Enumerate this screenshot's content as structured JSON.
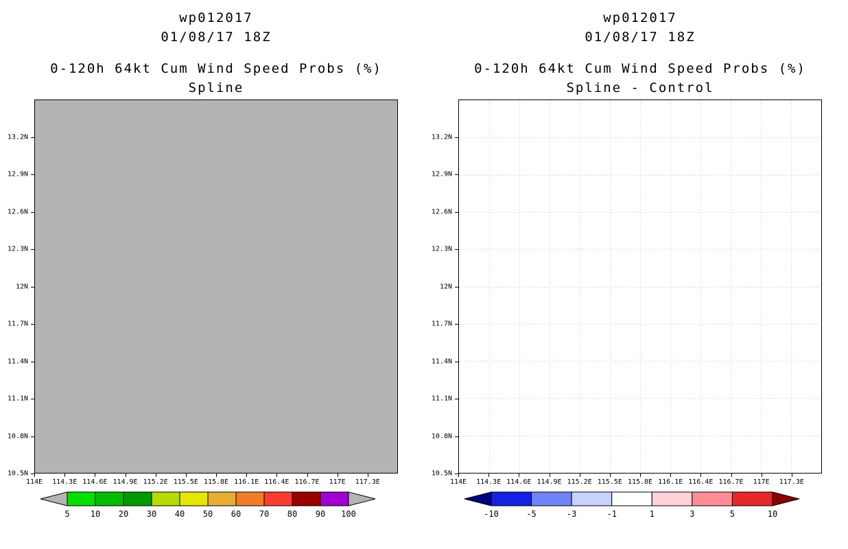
{
  "page": {
    "background": "#ffffff"
  },
  "panels": [
    {
      "storm_id": "wp012017",
      "datetime": "01/08/17 18Z",
      "title": "0-120h 64kt Cum Wind Speed Probs (%)",
      "subtitle": "Spline",
      "map": {
        "fill": "#b4b4b4",
        "grid_visible": false,
        "grid_color": "#c4c4cc"
      },
      "y_ticks": [
        "13.2N",
        "12.9N",
        "12.6N",
        "12.3N",
        "12N",
        "11.7N",
        "11.4N",
        "11.1N",
        "10.8N",
        "10.5N"
      ],
      "x_ticks": [
        "114E",
        "114.3E",
        "114.6E",
        "114.9E",
        "115.2E",
        "115.5E",
        "115.8E",
        "116.1E",
        "116.4E",
        "116.7E",
        "117E",
        "117.3E"
      ],
      "colorbar": {
        "left_arrow": "#b4b4b4",
        "right_arrow": "#b4b4b4",
        "segments": [
          "#00e100",
          "#00bd00",
          "#009900",
          "#b4dc00",
          "#e6e600",
          "#e6af32",
          "#f07d28",
          "#fa3c32",
          "#9b0000",
          "#a000d2"
        ],
        "labels": [
          "5",
          "10",
          "20",
          "30",
          "40",
          "50",
          "60",
          "70",
          "80",
          "90",
          "100"
        ]
      }
    },
    {
      "storm_id": "wp012017",
      "datetime": "01/08/17 18Z",
      "title": "0-120h 64kt Cum Wind Speed Probs (%)",
      "subtitle": "Spline - Control",
      "map": {
        "fill": "#ffffff",
        "grid_visible": true,
        "grid_color": "#c4c4cc"
      },
      "y_ticks": [
        "13.2N",
        "12.9N",
        "12.6N",
        "12.3N",
        "12N",
        "11.7N",
        "11.4N",
        "11.1N",
        "10.8N",
        "10.5N"
      ],
      "x_ticks": [
        "114E",
        "114.3E",
        "114.6E",
        "114.9E",
        "115.2E",
        "115.5E",
        "115.8E",
        "116.1E",
        "116.4E",
        "116.7E",
        "117E",
        "117.3E"
      ],
      "colorbar": {
        "left_arrow": "#000082",
        "right_arrow": "#8b0000",
        "segments": [
          "#1420e6",
          "#6e82fa",
          "#c8d2ff",
          "#ffffff",
          "#ffd2d7",
          "#ff8c96",
          "#e62828"
        ],
        "labels": [
          "-10",
          "-5",
          "-3",
          "-1",
          "1",
          "3",
          "5",
          "10"
        ]
      }
    }
  ],
  "chart_data": [
    {
      "type": "heatmap",
      "storm_id": "wp012017",
      "init_time": "01/08/17 18Z",
      "title": "0-120h 64kt Cum Wind Speed Probs (%)",
      "subtitle": "Spline",
      "xlabel": "",
      "ylabel": "",
      "x_tick_labels": [
        "114E",
        "114.3E",
        "114.6E",
        "114.9E",
        "115.2E",
        "115.5E",
        "115.8E",
        "116.1E",
        "116.4E",
        "116.7E",
        "117E",
        "117.3E"
      ],
      "y_tick_labels": [
        "13.2N",
        "12.9N",
        "12.6N",
        "12.3N",
        "12N",
        "11.7N",
        "11.4N",
        "11.1N",
        "10.8N",
        "10.5N"
      ],
      "xlim_deg_east": [
        114.0,
        117.6
      ],
      "ylim_deg_north": [
        10.5,
        13.5
      ],
      "colorbar_levels_percent": [
        5,
        10,
        20,
        30,
        40,
        50,
        60,
        70,
        80,
        90,
        100
      ],
      "colorbar_colors": [
        "#00e100",
        "#00bd00",
        "#009900",
        "#b4dc00",
        "#e6e600",
        "#e6af32",
        "#f07d28",
        "#fa3c32",
        "#9b0000",
        "#a000d2"
      ],
      "values": "no contoured probability field visible; entire map area is a uniform gray fill (#b4b4b4)",
      "grid": false,
      "legend_position": "bottom"
    },
    {
      "type": "heatmap",
      "storm_id": "wp012017",
      "init_time": "01/08/17 18Z",
      "title": "0-120h 64kt Cum Wind Speed Probs (%)",
      "subtitle": "Spline - Control",
      "xlabel": "",
      "ylabel": "",
      "x_tick_labels": [
        "114E",
        "114.3E",
        "114.6E",
        "114.9E",
        "115.2E",
        "115.5E",
        "115.8E",
        "116.1E",
        "116.4E",
        "116.7E",
        "117E",
        "117.3E"
      ],
      "y_tick_labels": [
        "13.2N",
        "12.9N",
        "12.6N",
        "12.3N",
        "12N",
        "11.7N",
        "11.4N",
        "11.1N",
        "10.8N",
        "10.5N"
      ],
      "xlim_deg_east": [
        114.0,
        117.6
      ],
      "ylim_deg_north": [
        10.5,
        13.5
      ],
      "colorbar_levels_percent": [
        -10,
        -5,
        -3,
        -1,
        1,
        3,
        5,
        10
      ],
      "colorbar_colors": [
        "#1420e6",
        "#6e82fa",
        "#c8d2ff",
        "#ffffff",
        "#ffd2d7",
        "#ff8c96",
        "#e62828"
      ],
      "values": "no difference field visible; map area is blank white with a dotted lat/lon graticule",
      "grid": true,
      "legend_position": "bottom"
    }
  ]
}
